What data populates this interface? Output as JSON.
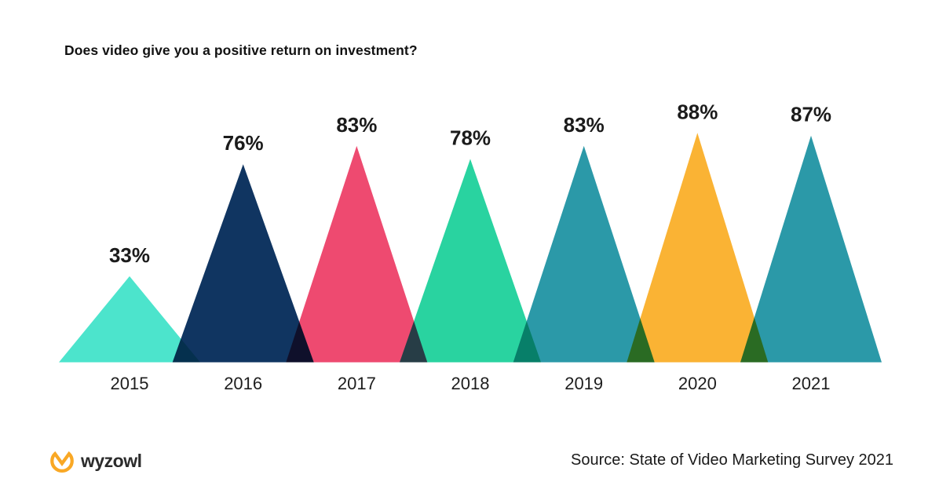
{
  "title": "Does video give you a positive return on investment?",
  "footer": {
    "logo_text": "wyzowl",
    "logo_icon": "wyzowl-owl-icon",
    "logo_color": "#F9A825",
    "source": "Source: State of Video Marketing Survey 2021"
  },
  "colors": {
    "text_dark": "#1b1b1b",
    "year_label": "#1e1e1e",
    "background": "#ffffff"
  },
  "chart_data": {
    "type": "bar",
    "mark": "triangle-peak",
    "title": "Does video give you a positive return on investment?",
    "categories": [
      "2015",
      "2016",
      "2017",
      "2018",
      "2019",
      "2020",
      "2021"
    ],
    "values": [
      33,
      76,
      83,
      78,
      83,
      88,
      87
    ],
    "data_labels": [
      "33%",
      "76%",
      "83%",
      "78%",
      "83%",
      "88%",
      "87%"
    ],
    "unit": "%",
    "series_colors": [
      "#4CE4CC",
      "#103561",
      "#EE4A70",
      "#29D3A0",
      "#2B99A8",
      "#FAB334",
      "#2B99A8"
    ],
    "overlap_blend": "multiply",
    "xlabel": "",
    "ylabel": "",
    "ylim": [
      0,
      100
    ],
    "grid": false,
    "legend": "none",
    "source": "Source: State of Video Marketing Survey 2021"
  }
}
